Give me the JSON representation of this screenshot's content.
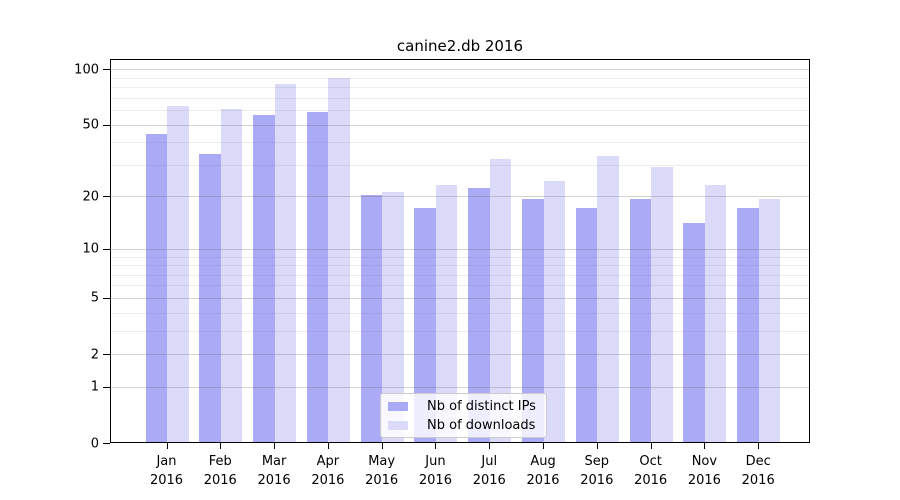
{
  "chart_data": {
    "type": "bar",
    "title": "canine2.db 2016",
    "categories": [
      "Jan 2016",
      "Feb 2016",
      "Mar 2016",
      "Apr 2016",
      "May 2016",
      "Jun 2016",
      "Jul 2016",
      "Aug 2016",
      "Sep 2016",
      "Oct 2016",
      "Nov 2016",
      "Dec 2016"
    ],
    "series": [
      {
        "name": "Nb of distinct IPs",
        "color": "#aaaaf7",
        "values": [
          44,
          34,
          56,
          58,
          20,
          17,
          22,
          19,
          17,
          19,
          14,
          17
        ]
      },
      {
        "name": "Nb of downloads",
        "color": "#dbdbf9",
        "values": [
          62,
          60,
          82,
          88,
          21,
          23,
          32,
          24,
          33,
          29,
          23,
          19
        ]
      }
    ],
    "yscale": "log1p",
    "yticks": [
      100,
      50,
      20,
      10,
      5,
      2,
      1,
      0
    ],
    "minor_yticks": [
      3,
      4,
      6,
      7,
      8,
      9,
      30,
      40,
      60,
      70,
      80,
      90
    ],
    "ylim": [
      0,
      112
    ],
    "xlabel": "",
    "ylabel": "",
    "grid": true,
    "legend_position": "inside-bottom-center"
  }
}
